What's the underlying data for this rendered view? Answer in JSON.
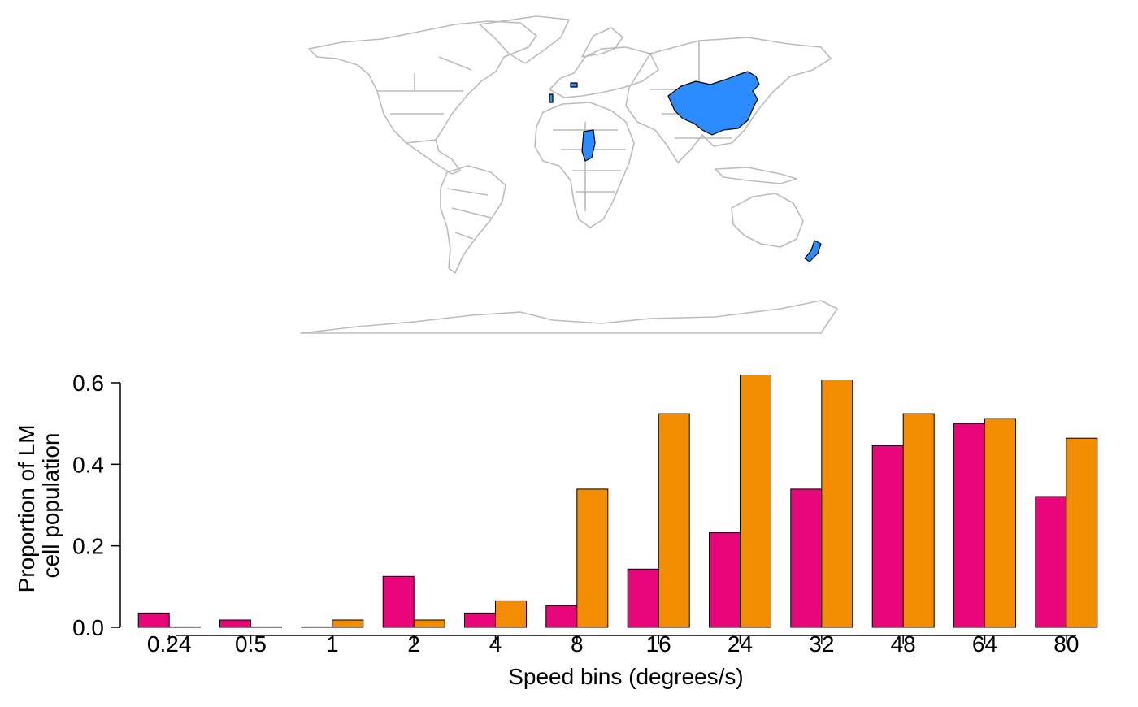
{
  "map": {
    "highlight_color": "#2B8CFF",
    "border_color": "#BBBBBB",
    "highlighted_regions": [
      "China",
      "Chad",
      "New Zealand",
      "Portugal",
      "Switzerland"
    ]
  },
  "chart_data": {
    "type": "bar",
    "xlabel": "Speed bins (degrees/s)",
    "ylabel_lines": [
      "Proportion of LM",
      "cell population"
    ],
    "categories": [
      "0.24",
      "0.5",
      "1",
      "2",
      "4",
      "8",
      "16",
      "24",
      "32",
      "48",
      "64",
      "80"
    ],
    "ylim": [
      0,
      0.6
    ],
    "yticks": [
      "0.0",
      "0.2",
      "0.4",
      "0.6"
    ],
    "ytick_values": [
      0,
      0.2,
      0.4,
      0.6
    ],
    "grid": false,
    "series": [
      {
        "color": "#E8067A",
        "values": [
          0.035,
          0.018,
          0.0,
          0.125,
          0.035,
          0.053,
          0.143,
          0.232,
          0.339,
          0.446,
          0.5,
          0.321
        ]
      },
      {
        "color": "#F28C00",
        "values": [
          0.0,
          0.0,
          0.018,
          0.018,
          0.065,
          0.339,
          0.524,
          0.619,
          0.607,
          0.524,
          0.512,
          0.464
        ]
      }
    ]
  }
}
